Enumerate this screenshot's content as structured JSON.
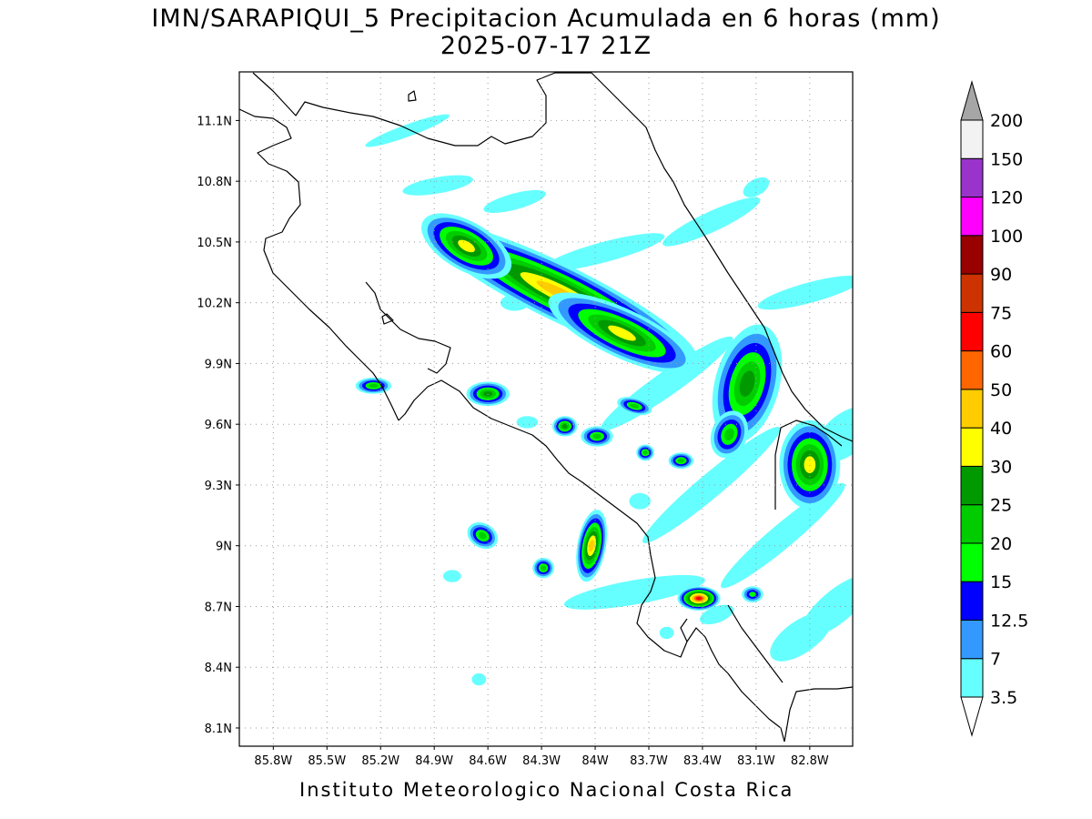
{
  "map": {
    "title_line1": "IMN/SARAPIQUI_5 Precipitacion Acumulada en 6 horas (mm)",
    "title_line2": "2025-07-17 21Z",
    "footer": "Instituto Meteorologico Nacional Costa Rica",
    "lat_labels": [
      "11.1N",
      "10.8N",
      "10.5N",
      "10.2N",
      "9.9N",
      "9.6N",
      "9.3N",
      "9N",
      "8.7N",
      "8.4N",
      "8.1N"
    ],
    "lon_labels": [
      "85.8W",
      "85.5W",
      "85.2W",
      "84.9W",
      "84.6W",
      "84.3W",
      "84W",
      "83.7W",
      "83.4W",
      "83.1W",
      "82.8W"
    ],
    "lat_values": [
      11.1,
      10.8,
      10.5,
      10.2,
      9.9,
      9.6,
      9.3,
      9.0,
      8.7,
      8.4,
      8.1
    ],
    "lon_values": [
      -85.8,
      -85.5,
      -85.2,
      -84.9,
      -84.6,
      -84.3,
      -84.0,
      -83.7,
      -83.4,
      -83.1,
      -82.8
    ],
    "extent": {
      "lon_min": -85.99,
      "lon_max": -82.56,
      "lat_min": 8.01,
      "lat_max": 11.34
    }
  },
  "legend": {
    "units": "mm",
    "levels": [
      {
        "label": "3.5",
        "color": "#66ffff"
      },
      {
        "label": "7",
        "color": "#3399ff"
      },
      {
        "label": "12.5",
        "color": "#0000ff"
      },
      {
        "label": "15",
        "color": "#00ff00"
      },
      {
        "label": "20",
        "color": "#00cc00"
      },
      {
        "label": "25",
        "color": "#009900"
      },
      {
        "label": "30",
        "color": "#ffff00"
      },
      {
        "label": "40",
        "color": "#ffcc00"
      },
      {
        "label": "50",
        "color": "#ff6600"
      },
      {
        "label": "60",
        "color": "#ff0000"
      },
      {
        "label": "75",
        "color": "#cc3300"
      },
      {
        "label": "90",
        "color": "#990000"
      },
      {
        "label": "100",
        "color": "#ff00ff"
      },
      {
        "label": "120",
        "color": "#9933cc"
      },
      {
        "label": "150",
        "color": "#f2f2f2"
      },
      {
        "label": "200",
        "color": "#a6a6a6"
      }
    ]
  }
}
